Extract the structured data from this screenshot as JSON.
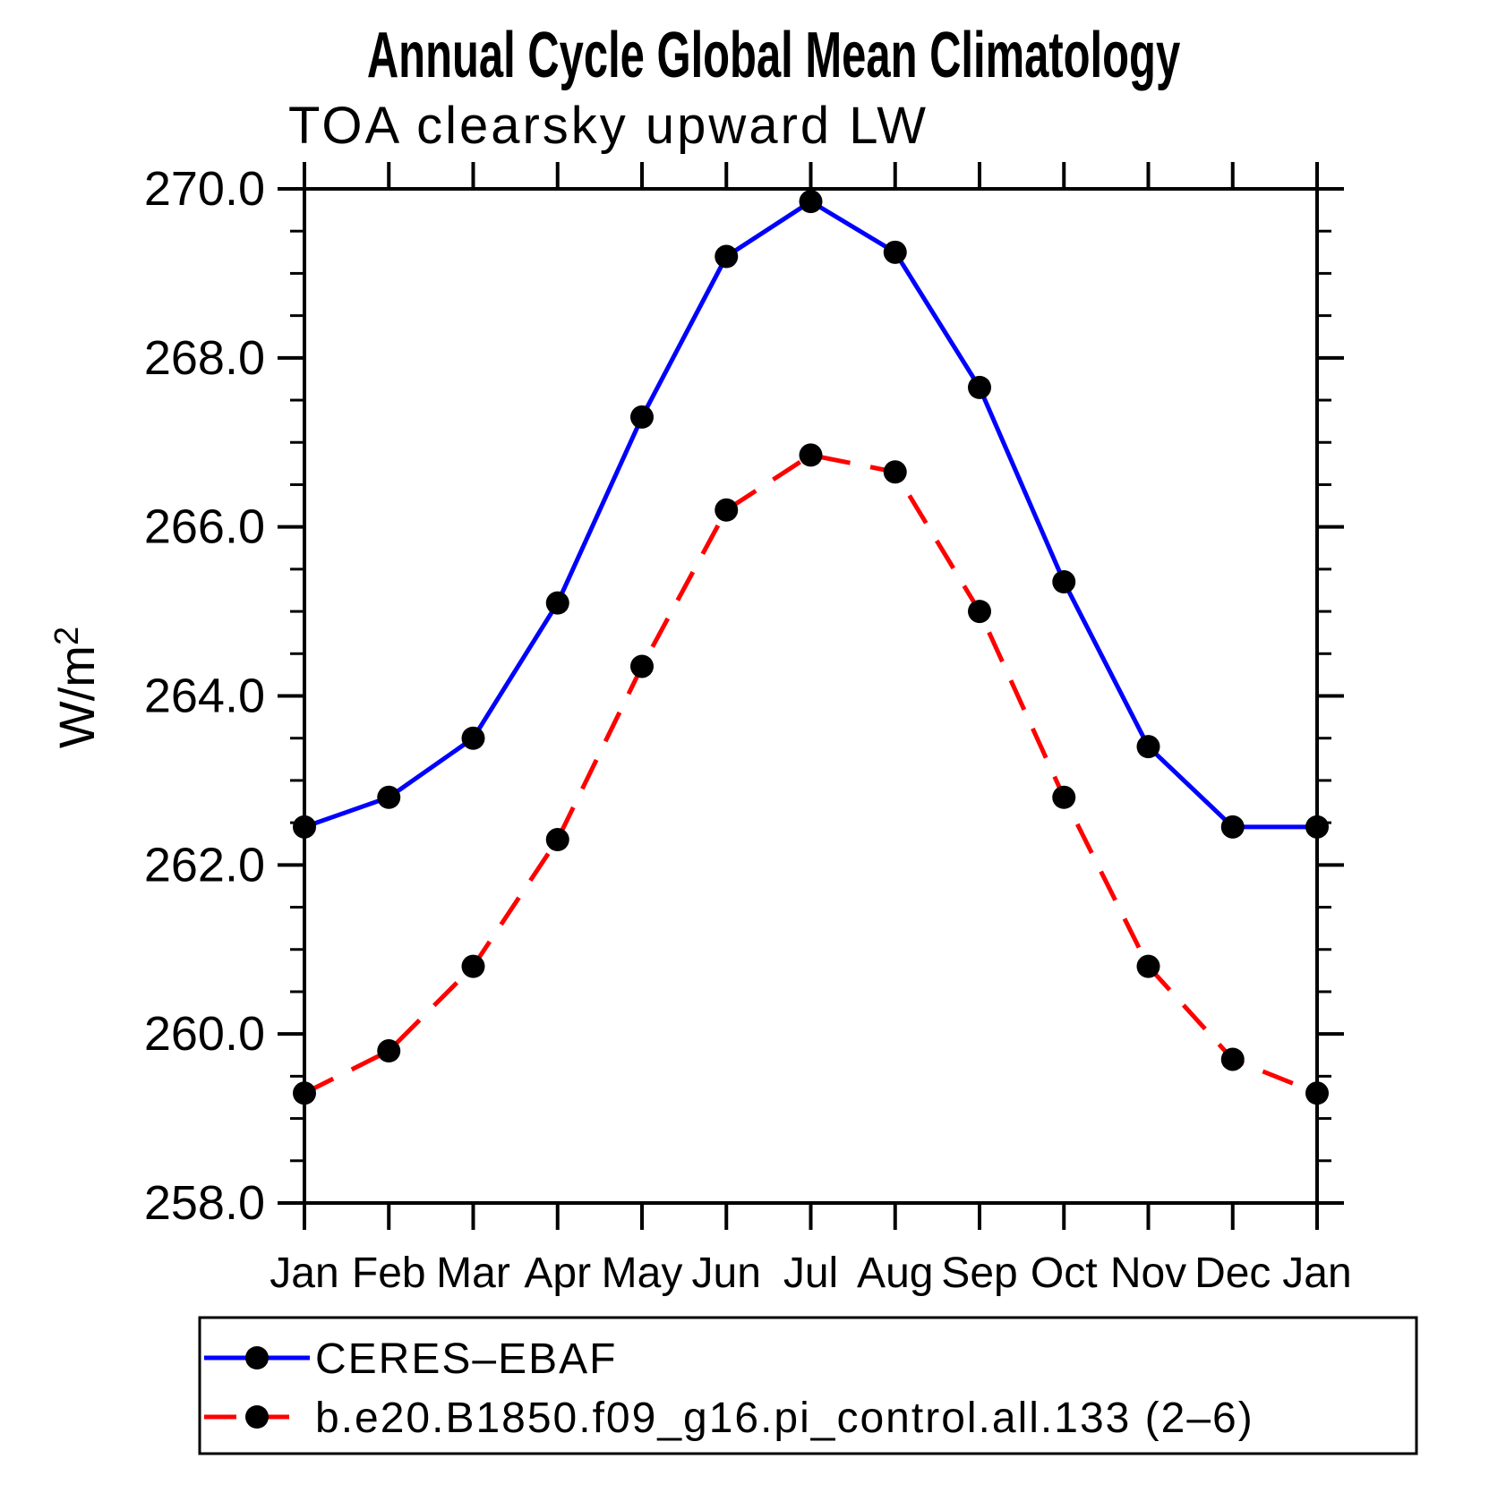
{
  "header": {
    "title": "Annual Cycle Global Mean Climatology",
    "subtitle": "TOA clearsky upward LW"
  },
  "chart_data": {
    "type": "line",
    "title": "Annual Cycle Global Mean Climatology",
    "subtitle": "TOA clearsky upward LW",
    "ylabel_base": "W/m",
    "ylabel_sup": "2",
    "xlabel": "",
    "categories": [
      "Jan",
      "Feb",
      "Mar",
      "Apr",
      "May",
      "Jun",
      "Jul",
      "Aug",
      "Sep",
      "Oct",
      "Nov",
      "Dec",
      "Jan"
    ],
    "series": [
      {
        "name": "CERES–EBAF",
        "color": "#0000ff",
        "line_style": "solid",
        "marker": "filled-circle",
        "marker_color": "#000000",
        "values": [
          262.45,
          262.8,
          263.5,
          265.1,
          267.3,
          269.2,
          269.85,
          269.25,
          267.65,
          265.35,
          263.4,
          262.45,
          262.45
        ]
      },
      {
        "name": "b.e20.B1850.f09_g16.pi_control.all.133 (2–6)",
        "color": "#ff0000",
        "line_style": "dashed",
        "marker": "filled-circle",
        "marker_color": "#000000",
        "values": [
          259.3,
          259.8,
          260.8,
          262.3,
          264.35,
          266.2,
          266.85,
          266.65,
          265.0,
          262.8,
          260.8,
          259.7,
          259.3
        ]
      }
    ],
    "ylim": [
      258.0,
      270.0
    ],
    "ytick_step": 2.0,
    "yminor_step": 0.5,
    "ytick_labels": [
      "258.0",
      "260.0",
      "262.0",
      "264.0",
      "266.0",
      "268.0",
      "270.0"
    ],
    "grid": false,
    "axis_color": "#000000",
    "legend_position": "bottom-left"
  }
}
